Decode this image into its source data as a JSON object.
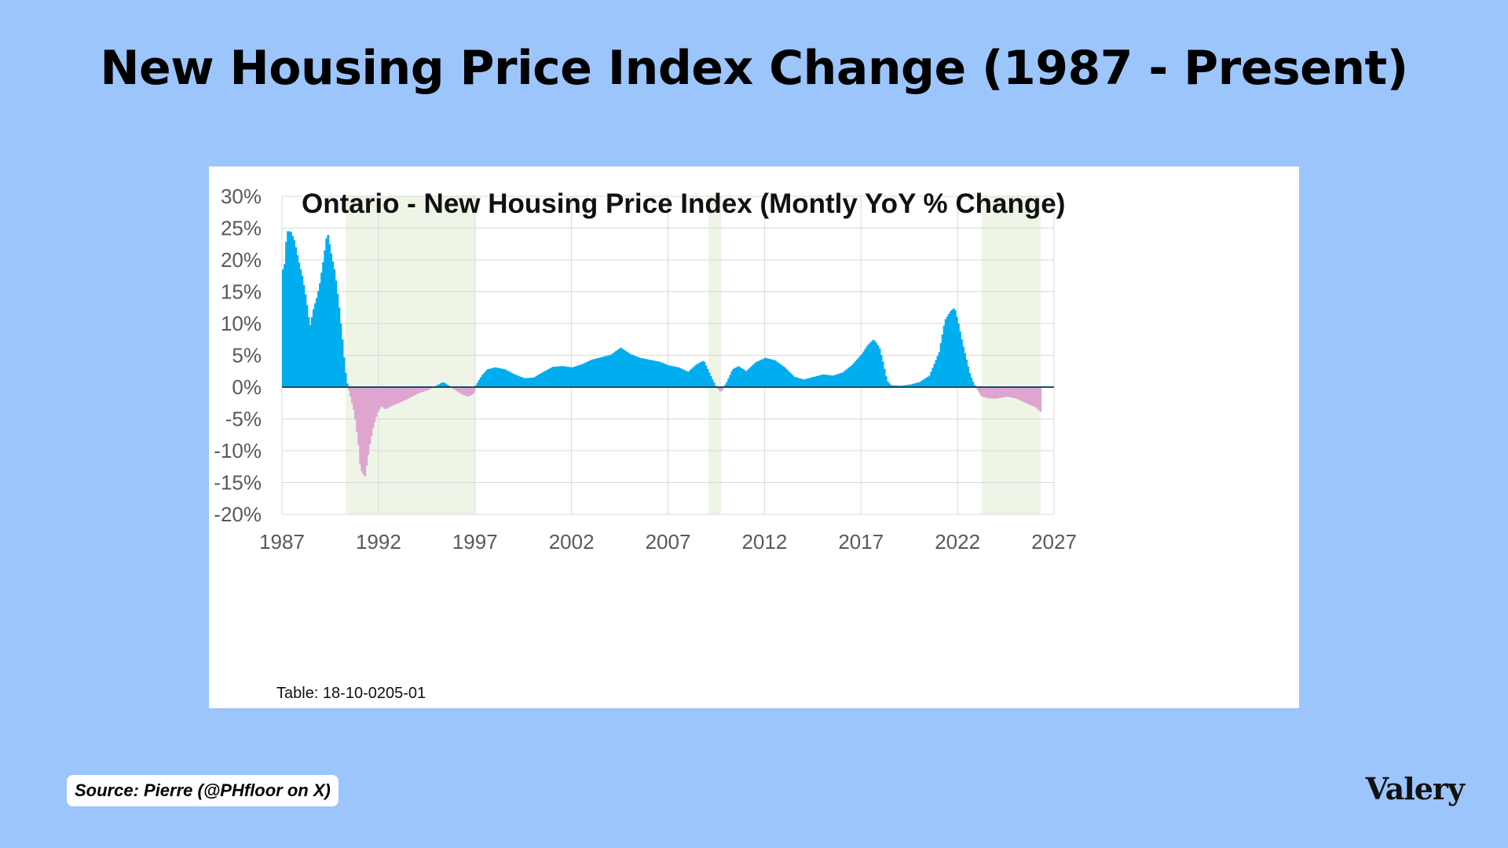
{
  "page": {
    "title": "New Housing Price Index Change (1987 - Present)",
    "source": "Source: Pierre (@PHfloor on X)",
    "brand": "Valery"
  },
  "colors": {
    "background": "#9cc5fc",
    "positive": "#00aeef",
    "negative": "#dda5d0",
    "shade": "#eef5e6",
    "baseline": "#1a4a6a"
  },
  "chart_data": {
    "type": "area",
    "title": "Ontario - New Housing Price Index (Montly YoY % Change)",
    "footnote": "Table: 18-10-0205-01",
    "xlabel": "",
    "ylabel": "",
    "xlim": [
      1987,
      2027
    ],
    "ylim": [
      -20,
      30
    ],
    "x_ticks": [
      "1987",
      "1992",
      "1997",
      "2002",
      "2007",
      "2012",
      "2017",
      "2022",
      "2027"
    ],
    "y_ticks": [
      "30%",
      "25%",
      "20%",
      "15%",
      "10%",
      "5%",
      "0%",
      "-5%",
      "-10%",
      "-15%",
      "-20%"
    ],
    "grid": true,
    "shaded_periods": [
      [
        1990.3,
        1997.0
      ],
      [
        2009.1,
        2009.75
      ],
      [
        2023.25,
        2026.3
      ]
    ],
    "series": [
      {
        "x": [
          1987.0,
          1987.1,
          1987.2,
          1987.4,
          1987.6,
          1987.8,
          1988.0,
          1988.2,
          1988.4,
          1988.6,
          1988.75,
          1988.9,
          1989.1,
          1989.3,
          1989.5,
          1989.7,
          1989.9,
          1990.1,
          1990.2,
          1990.3,
          1990.5,
          1990.7,
          1990.9,
          1991.0,
          1991.1,
          1991.25,
          1991.35,
          1991.5,
          1991.7,
          1991.9,
          1992.1,
          1992.3,
          1992.6,
          1993.0,
          1993.5,
          1994.0,
          1994.5,
          1995.0,
          1995.3,
          1995.6,
          1996.0,
          1996.3,
          1996.6,
          1996.9,
          1997.0,
          1997.3,
          1997.6,
          1998.0,
          1998.5,
          1999.0,
          1999.5,
          2000.0,
          2000.5,
          2001.0,
          2001.5,
          2002.0,
          2002.5,
          2003.0,
          2003.5,
          2004.0,
          2004.5,
          2005.0,
          2005.5,
          2006.0,
          2006.5,
          2007.0,
          2007.5,
          2008.0,
          2008.4,
          2008.8,
          2009.2,
          2009.45,
          2009.7,
          2010.0,
          2010.3,
          2010.6,
          2011.0,
          2011.5,
          2012.0,
          2012.5,
          2013.0,
          2013.5,
          2014.0,
          2014.5,
          2015.0,
          2015.5,
          2016.0,
          2016.5,
          2017.0,
          2017.3,
          2017.6,
          2017.9,
          2018.1,
          2018.3,
          2018.5,
          2019.0,
          2019.5,
          2020.0,
          2020.5,
          2021.0,
          2021.3,
          2021.6,
          2021.8,
          2022.0,
          2022.2,
          2022.4,
          2022.6,
          2022.8,
          2023.0,
          2023.2,
          2023.4,
          2023.6,
          2024.0,
          2024.5,
          2025.0,
          2025.5,
          2026.0,
          2026.3
        ],
        "y": [
          18.5,
          19.5,
          24.5,
          24.5,
          23.0,
          20.0,
          17.5,
          14.0,
          9.5,
          12.5,
          14.0,
          16.0,
          20.0,
          24.5,
          21.0,
          18.0,
          13.0,
          7.0,
          3.5,
          1.0,
          -1.5,
          -4.0,
          -8.5,
          -12.0,
          -13.5,
          -14.0,
          -12.0,
          -9.0,
          -6.0,
          -4.0,
          -3.0,
          -3.5,
          -3.0,
          -2.5,
          -1.8,
          -1.0,
          -0.5,
          0.3,
          0.8,
          0.2,
          -0.6,
          -1.2,
          -1.5,
          -1.0,
          0.3,
          1.8,
          2.8,
          3.1,
          2.8,
          2.0,
          1.4,
          1.5,
          2.4,
          3.2,
          3.3,
          3.1,
          3.6,
          4.3,
          4.7,
          5.1,
          6.2,
          5.2,
          4.6,
          4.3,
          4.0,
          3.4,
          3.1,
          2.4,
          3.5,
          4.2,
          1.5,
          0.0,
          -0.8,
          0.8,
          2.8,
          3.3,
          2.5,
          3.9,
          4.6,
          4.2,
          3.1,
          1.6,
          1.2,
          1.6,
          2.0,
          1.8,
          2.3,
          3.5,
          5.2,
          6.6,
          7.5,
          6.3,
          3.8,
          1.0,
          0.3,
          0.2,
          0.4,
          0.8,
          1.8,
          5.5,
          10.5,
          12.0,
          12.5,
          10.0,
          7.0,
          4.5,
          2.0,
          0.5,
          -0.5,
          -1.5,
          -1.6,
          -1.8,
          -1.8,
          -1.5,
          -1.8,
          -2.5,
          -3.2,
          -4.0
        ]
      }
    ]
  }
}
